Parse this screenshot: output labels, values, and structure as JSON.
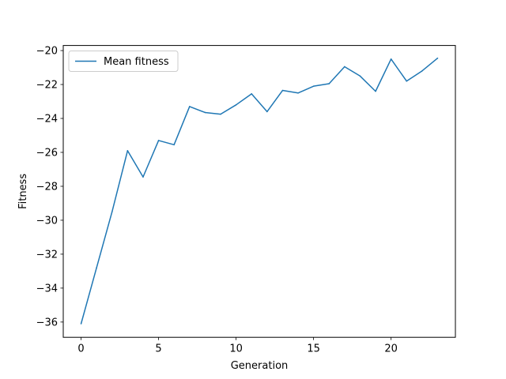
{
  "chart_data": {
    "type": "line",
    "title": "",
    "xlabel": "Generation",
    "ylabel": "Fitness",
    "xlim": [
      -1.15,
      24.15
    ],
    "ylim": [
      -36.9,
      -19.7
    ],
    "xticks": [
      0,
      5,
      10,
      15,
      20
    ],
    "yticks": [
      -36,
      -34,
      -32,
      -30,
      -28,
      -26,
      -24,
      -22,
      -20
    ],
    "grid": false,
    "legend": {
      "position": "upper-left"
    },
    "series": [
      {
        "name": "Mean fitness",
        "color": "#1f77b4",
        "x": [
          0,
          1,
          2,
          3,
          4,
          5,
          6,
          7,
          8,
          9,
          10,
          11,
          12,
          13,
          14,
          15,
          16,
          17,
          18,
          19,
          20,
          21,
          22,
          23
        ],
        "y": [
          -36.1,
          -32.8,
          -29.5,
          -25.9,
          -27.45,
          -25.3,
          -25.55,
          -23.3,
          -23.65,
          -23.75,
          -23.2,
          -22.55,
          -23.6,
          -22.35,
          -22.5,
          -22.1,
          -21.95,
          -20.95,
          -21.5,
          -22.4,
          -20.5,
          -21.8,
          -21.2,
          -20.45
        ]
      }
    ]
  }
}
